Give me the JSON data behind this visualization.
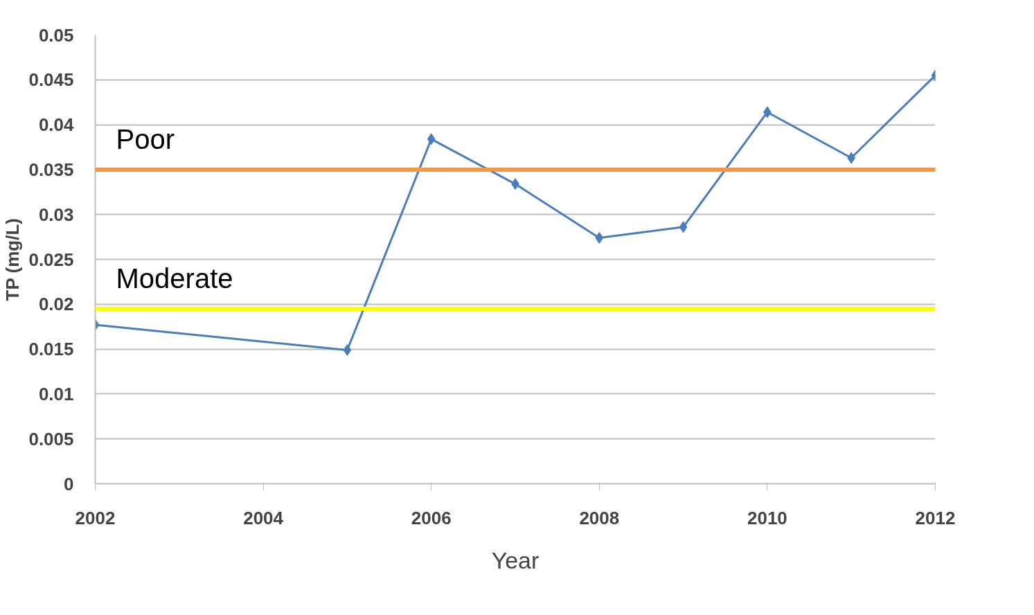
{
  "chart_data": {
    "type": "line",
    "xlabel": "Year",
    "ylabel": "TP (mg/L)",
    "x": [
      2002,
      2005,
      2006,
      2007,
      2008,
      2009,
      2010,
      2011,
      2012
    ],
    "series": [
      {
        "color": "#4a7ebb",
        "values": [
          0.0177,
          0.0149,
          0.0384,
          0.0334,
          0.0274,
          0.0286,
          0.0414,
          0.0363,
          0.0455
        ]
      }
    ],
    "xlim": [
      2002,
      2012
    ],
    "xticks": [
      2002,
      2004,
      2006,
      2008,
      2010,
      2012
    ],
    "ylim": [
      0,
      0.05
    ],
    "yticks": [
      0,
      0.005,
      0.01,
      0.015,
      0.02,
      0.025,
      0.03,
      0.035,
      0.04,
      0.045,
      0.05
    ],
    "ref_lines": [
      {
        "axis": "y",
        "value": 0.035,
        "label": "Poor",
        "color": "#f79646"
      },
      {
        "axis": "y",
        "value": 0.0195,
        "label": "Moderate",
        "color": "#ffff00"
      }
    ],
    "grid": "y",
    "marker": "diamond",
    "line_style": "solid"
  }
}
